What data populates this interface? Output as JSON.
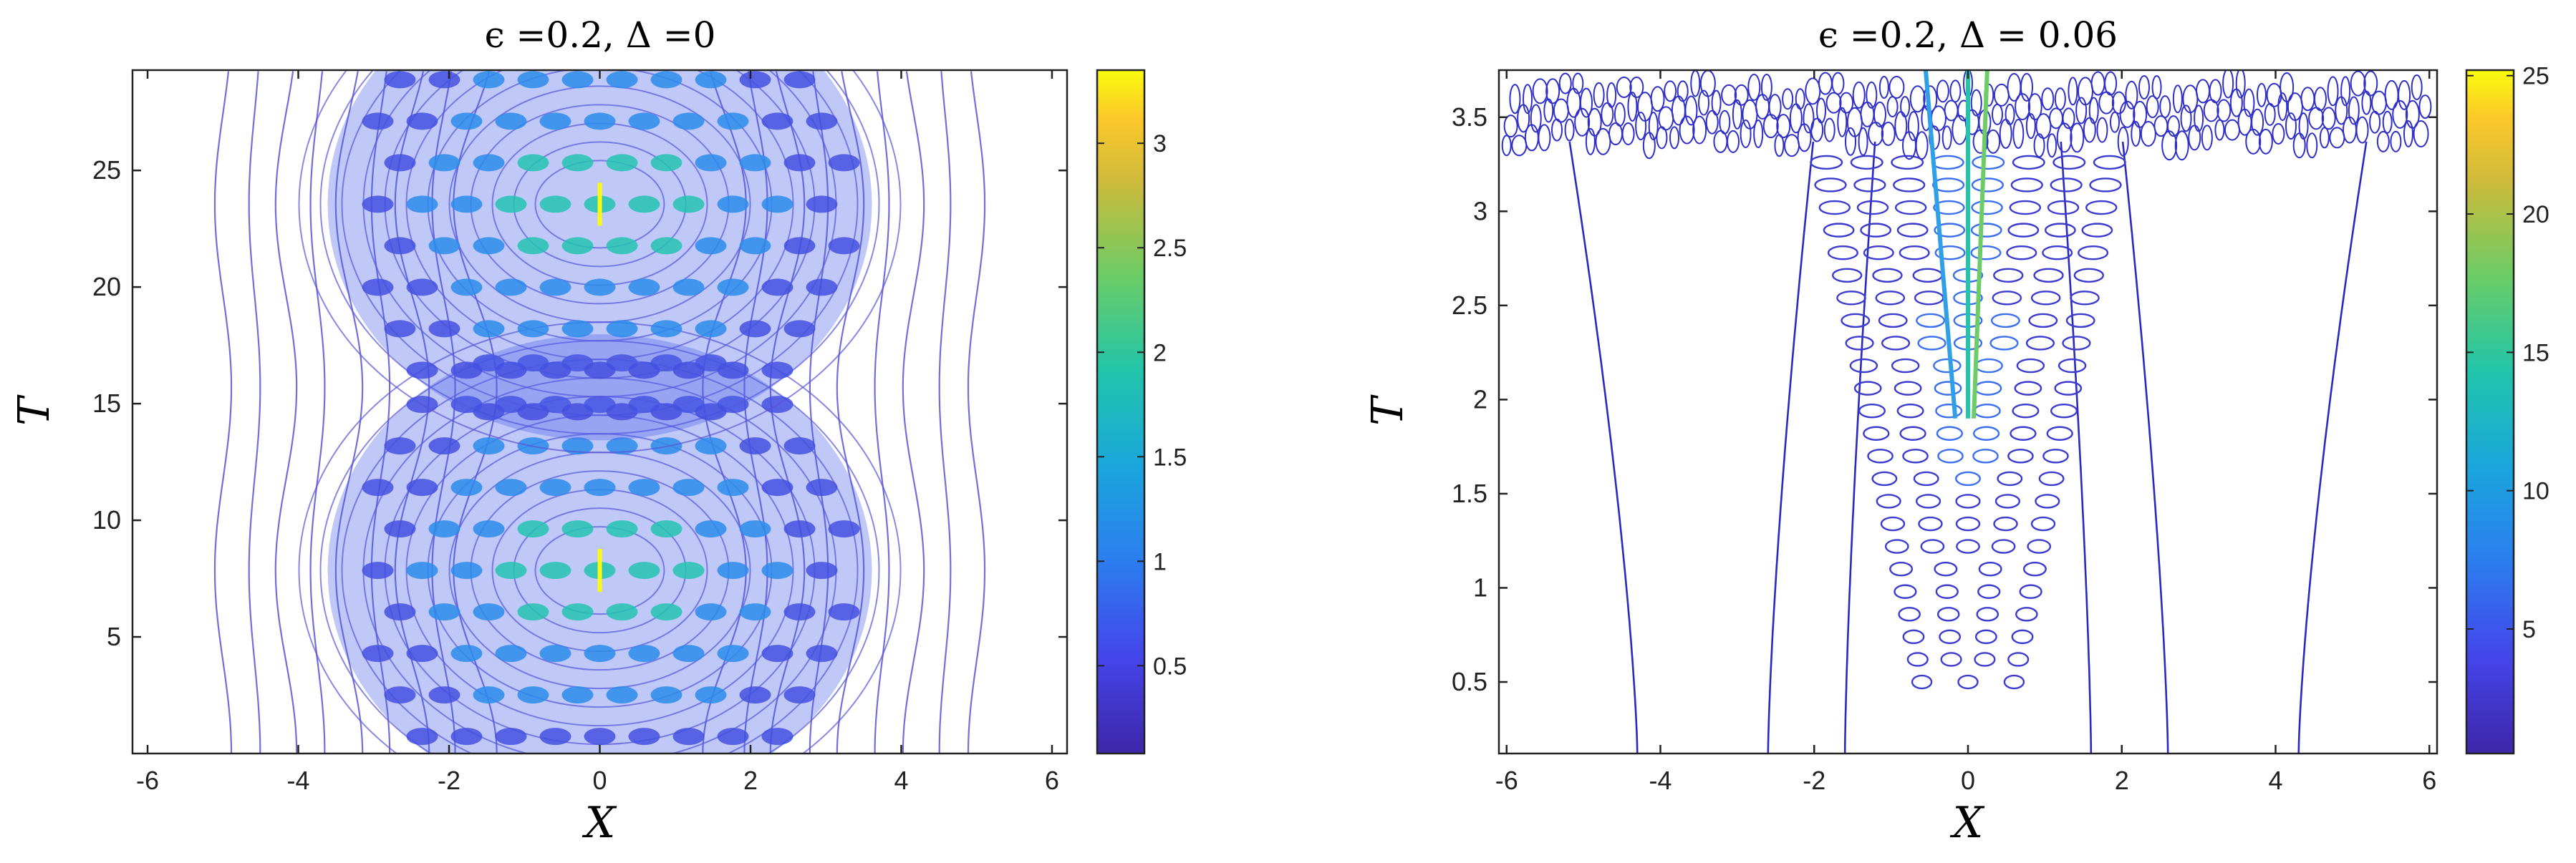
{
  "chart_data": [
    {
      "type": "contour",
      "title": "ϵ =0.2, Δ =0",
      "xlabel": "X",
      "ylabel": "T",
      "xlim": [
        -6.2,
        6.2
      ],
      "ylim": [
        0,
        29.3
      ],
      "xticks": [
        -6,
        -4,
        -2,
        0,
        2,
        4,
        6
      ],
      "xtick_labels": [
        "-6",
        "-4",
        "-2",
        "0",
        "2",
        "4",
        "6"
      ],
      "yticks": [
        5,
        10,
        15,
        20,
        25
      ],
      "ytick_labels": [
        "5",
        "10",
        "15",
        "20",
        "25"
      ],
      "colorbar": {
        "range": [
          0.08,
          3.35
        ],
        "ticks": [
          0.5,
          1,
          1.5,
          2,
          2.5,
          3
        ],
        "tick_labels": [
          "0.5",
          "1",
          "1.5",
          "2",
          "2.5",
          "3"
        ]
      },
      "features": {
        "period_T": 15.7,
        "peak_times": [
          7.85,
          23.55
        ],
        "peak_amplitude": 3.3
      },
      "colors": {
        "low": "#3E26A8",
        "mid": "#21C5A9",
        "high": "#F9FB0E"
      }
    },
    {
      "type": "contour",
      "title": "ϵ =0.2, Δ = 0.06",
      "xlabel": "X",
      "ylabel": "T",
      "xlim": [
        -6.1,
        6.1
      ],
      "ylim": [
        0.12,
        3.75
      ],
      "xticks": [
        -6,
        -4,
        -2,
        0,
        2,
        4,
        6
      ],
      "xtick_labels": [
        "-6",
        "-4",
        "-2",
        "0",
        "2",
        "4",
        "6"
      ],
      "yticks": [
        0.5,
        1,
        1.5,
        2,
        2.5,
        3,
        3.5
      ],
      "ytick_labels": [
        "0.5",
        "1",
        "1.5",
        "2",
        "2.5",
        "3",
        "3.5"
      ],
      "colorbar": {
        "range": [
          0.5,
          25.2
        ],
        "ticks": [
          5,
          10,
          15,
          20,
          25
        ],
        "tick_labels": [
          "5",
          "10",
          "15",
          "20",
          "25"
        ]
      },
      "features": {
        "blowup_time": 3.75,
        "peak_amplitude": 25
      },
      "colors": {
        "low": "#3E26A8",
        "mid": "#21C5A9",
        "high": "#F9FB0E"
      }
    }
  ]
}
